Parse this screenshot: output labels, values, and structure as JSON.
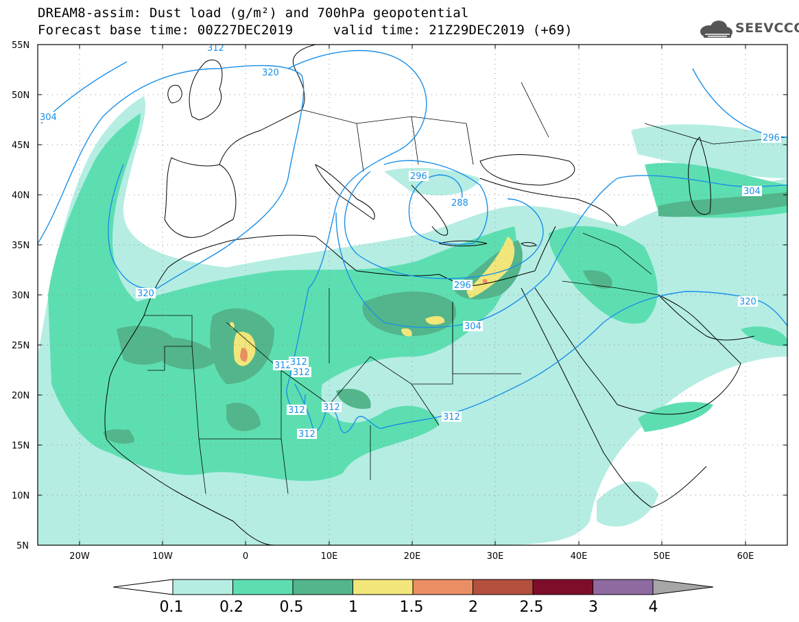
{
  "title": {
    "line1": "DREAM8-assim: Dust load (g/m²) and 700hPa geopotential",
    "line2": "Forecast base time: 00Z27DEC2019     valid time: 21Z29DEC2019 (+69)"
  },
  "logo": {
    "text": "SEEVCCC",
    "icon": "cloud-icon"
  },
  "axes": {
    "y_ticks": [
      "55N",
      "50N",
      "45N",
      "40N",
      "35N",
      "30N",
      "25N",
      "20N",
      "15N",
      "10N",
      "5N"
    ],
    "x_ticks": [
      "20W",
      "10W",
      "0",
      "10E",
      "20E",
      "30E",
      "40E",
      "50E",
      "60E"
    ],
    "x_range": [
      -25,
      65
    ],
    "y_range": [
      5,
      55
    ],
    "grid": "dotted"
  },
  "colorbar": {
    "labels": [
      "0.1",
      "0.2",
      "0.5",
      "1",
      "1.5",
      "2",
      "2.5",
      "3",
      "4"
    ],
    "colors": [
      "#ffffff",
      "#b5ede3",
      "#5ddeb1",
      "#53b58b",
      "#f2e67a",
      "#e98f63",
      "#b5503e",
      "#7e0d2a",
      "#8e6aa0",
      "#a6a6a6"
    ]
  },
  "contours": {
    "color": "#1a8fe6",
    "labels": [
      "304",
      "320",
      "320",
      "296",
      "288",
      "296",
      "304",
      "312",
      "312",
      "312",
      "312",
      "312",
      "312",
      "312",
      "320",
      "296",
      "304",
      "312"
    ]
  }
}
